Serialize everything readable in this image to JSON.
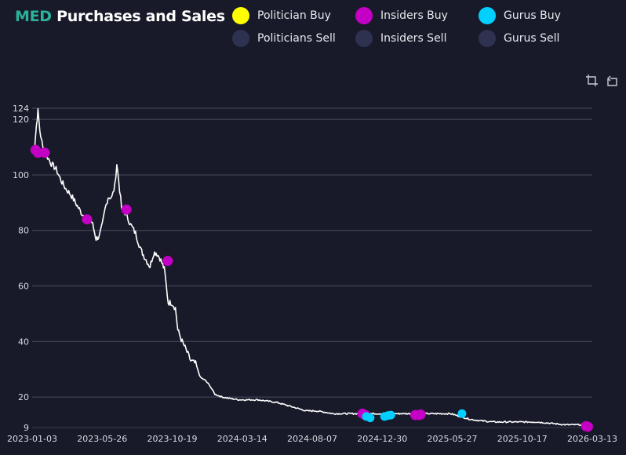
{
  "header": {
    "ticker": "MED",
    "title_rest": "Purchases and Sales"
  },
  "legend": {
    "items": [
      {
        "label": "Politician Buy",
        "color": "#ffff00"
      },
      {
        "label": "Insiders Buy",
        "color": "#c300c3"
      },
      {
        "label": "Gurus Buy",
        "color": "#00cfff"
      },
      {
        "label": "Politicians Sell",
        "color": "#2e3150"
      },
      {
        "label": "Insiders Sell",
        "color": "#2e3150"
      },
      {
        "label": "Gurus Sell",
        "color": "#2e3150"
      }
    ]
  },
  "toolbar": {
    "zoom_icon": "crop-icon",
    "reset_icon": "rotate-ccw-icon"
  },
  "chart_data": {
    "type": "line",
    "title": "MED Purchases and Sales",
    "xlabel": "",
    "ylabel": "",
    "ylim": [
      9,
      124
    ],
    "y_ticks": [
      9,
      20,
      40,
      60,
      80,
      100,
      120,
      124
    ],
    "x_ticks": [
      "2023-01-03",
      "2023-05-26",
      "2023-10-19",
      "2024-03-14",
      "2024-08-07",
      "2024-12-30",
      "2025-05-27",
      "2025-10-17",
      "2026-03-13"
    ],
    "x_range_days": [
      0,
      1165
    ],
    "line_color": "#ffffff",
    "price_series": [
      [
        0,
        108
      ],
      [
        5,
        110
      ],
      [
        9,
        118
      ],
      [
        12,
        123
      ],
      [
        16,
        116
      ],
      [
        22,
        110
      ],
      [
        30,
        107
      ],
      [
        40,
        104
      ],
      [
        50,
        102
      ],
      [
        60,
        98
      ],
      [
        70,
        95
      ],
      [
        80,
        93
      ],
      [
        90,
        90
      ],
      [
        100,
        87
      ],
      [
        108,
        85
      ],
      [
        115,
        84
      ],
      [
        122,
        84
      ],
      [
        126,
        82
      ],
      [
        133,
        77
      ],
      [
        140,
        78
      ],
      [
        146,
        82
      ],
      [
        152,
        88
      ],
      [
        158,
        92
      ],
      [
        166,
        92
      ],
      [
        172,
        96
      ],
      [
        176,
        104
      ],
      [
        180,
        98
      ],
      [
        186,
        88
      ],
      [
        195,
        86
      ],
      [
        205,
        82
      ],
      [
        215,
        79
      ],
      [
        226,
        73
      ],
      [
        235,
        70
      ],
      [
        245,
        67
      ],
      [
        253,
        72
      ],
      [
        258,
        72
      ],
      [
        266,
        70
      ],
      [
        275,
        66
      ],
      [
        283,
        54
      ],
      [
        290,
        54
      ],
      [
        298,
        52
      ],
      [
        303,
        44
      ],
      [
        312,
        40
      ],
      [
        320,
        37
      ],
      [
        330,
        33
      ],
      [
        340,
        32
      ],
      [
        350,
        27
      ],
      [
        360,
        26
      ],
      [
        370,
        24
      ],
      [
        380,
        21
      ],
      [
        395,
        20
      ],
      [
        410,
        19.5
      ],
      [
        430,
        19
      ],
      [
        450,
        19
      ],
      [
        470,
        19
      ],
      [
        490,
        18.5
      ],
      [
        510,
        18
      ],
      [
        530,
        17
      ],
      [
        550,
        16
      ],
      [
        570,
        15
      ],
      [
        590,
        15
      ],
      [
        610,
        14.5
      ],
      [
        625,
        14
      ],
      [
        640,
        14
      ],
      [
        655,
        14
      ],
      [
        670,
        14
      ],
      [
        690,
        14
      ],
      [
        710,
        14
      ],
      [
        730,
        14
      ],
      [
        750,
        14
      ],
      [
        770,
        14
      ],
      [
        790,
        14
      ],
      [
        805,
        14
      ],
      [
        820,
        14
      ],
      [
        835,
        14
      ],
      [
        850,
        14
      ],
      [
        870,
        14
      ],
      [
        890,
        13
      ],
      [
        910,
        12
      ],
      [
        930,
        11.5
      ],
      [
        960,
        11
      ],
      [
        990,
        11
      ],
      [
        1020,
        11
      ],
      [
        1050,
        11
      ],
      [
        1080,
        10.5
      ],
      [
        1110,
        10
      ],
      [
        1140,
        10
      ],
      [
        1165,
        10
      ]
    ],
    "series": [
      {
        "name": "Insiders Buy",
        "color": "#c300c3",
        "points": [
          [
            7,
            109
          ],
          [
            12,
            108
          ],
          [
            26,
            108
          ],
          [
            114,
            84
          ],
          [
            196,
            87.5
          ],
          [
            282,
            69
          ],
          [
            687,
            14
          ],
          [
            693,
            13.5
          ],
          [
            797,
            13.5
          ],
          [
            805,
            13.5
          ],
          [
            808,
            13.7
          ],
          [
            1152,
            9.5
          ],
          [
            1156,
            9.3
          ]
        ]
      },
      {
        "name": "Gurus Buy",
        "color": "#00cfff",
        "points": [
          [
            695,
            13
          ],
          [
            703,
            12.5
          ],
          [
            733,
            13
          ],
          [
            740,
            13.3
          ],
          [
            746,
            13.5
          ],
          [
            894,
            14
          ]
        ]
      }
    ]
  }
}
